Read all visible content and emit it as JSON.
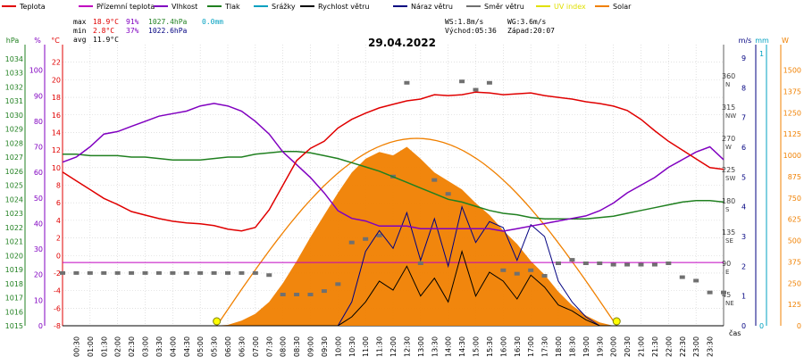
{
  "chart_data": {
    "type": "line",
    "title": "29.04.2022",
    "legend": [
      {
        "name": "Teplota",
        "color": "#e00000"
      },
      {
        "name": "Přízemní teplota",
        "color": "#c000c0"
      },
      {
        "name": "Vlhkost",
        "color": "#8000c0"
      },
      {
        "name": "Tlak",
        "color": "#208020"
      },
      {
        "name": "Srážky",
        "color": "#00a0c0"
      },
      {
        "name": "Rychlost větru",
        "color": "#000000"
      },
      {
        "name": "Náraz větru",
        "color": "#000080"
      },
      {
        "name": "Směr větru",
        "color": "#707070"
      },
      {
        "name": "UV index",
        "color": "#e0e000"
      },
      {
        "name": "Solar",
        "color": "#f08000"
      }
    ],
    "stats": {
      "max_label": "max",
      "max_temp": "18.9°C",
      "max_hum": "91%",
      "max_press": "1027.4hPa",
      "max_rain": "0.0mm",
      "min_label": "min",
      "min_temp": "2.8°C",
      "min_hum": "37%",
      "min_press": "1022.6hPa",
      "avg_label": "avg",
      "avg_temp": "11.9°C",
      "ws": "WS:1.8m/s",
      "wg": "WG:3.6m/s",
      "sunrise": "Východ:05:36",
      "sunset": "Západ:20:07"
    },
    "axes": {
      "hpa": {
        "unit": "hPa",
        "ticks": [
          1015,
          1016,
          1017,
          1018,
          1019,
          1020,
          1021,
          1022,
          1023,
          1024,
          1025,
          1026,
          1027,
          1028,
          1029,
          1030,
          1031,
          1032,
          1033,
          1034
        ]
      },
      "percent": {
        "unit": "%",
        "ticks": [
          0,
          10,
          20,
          30,
          40,
          50,
          60,
          70,
          80,
          90,
          100
        ]
      },
      "celsius": {
        "unit": "°C",
        "ticks": [
          -8,
          -6,
          -4,
          -2,
          0,
          2,
          4,
          6,
          8,
          10,
          12,
          14,
          16,
          18,
          20,
          22
        ]
      },
      "direction": {
        "ticks": [
          45,
          90,
          135,
          180,
          225,
          270,
          315,
          360
        ],
        "labels": [
          "NE",
          "E",
          "SE",
          "S",
          "SW",
          "W",
          "NW",
          "N"
        ]
      },
      "ms": {
        "unit": "m/s",
        "ticks": [
          0,
          1,
          2,
          3,
          4,
          5,
          6,
          7,
          8,
          9
        ]
      },
      "mm": {
        "unit": "mm",
        "ticks": [
          0,
          1
        ]
      },
      "w": {
        "unit": "W",
        "ticks": [
          0,
          125,
          250,
          375,
          500,
          625,
          750,
          875,
          1000,
          1125,
          1250,
          1375,
          1500
        ]
      },
      "x_label": "čas",
      "x_ticks": [
        "00:30",
        "01:00",
        "01:30",
        "02:00",
        "02:30",
        "03:00",
        "03:30",
        "04:00",
        "04:30",
        "05:00",
        "05:30",
        "06:00",
        "06:30",
        "07:00",
        "07:30",
        "08:00",
        "08:30",
        "09:00",
        "09:30",
        "10:00",
        "10:30",
        "11:00",
        "11:30",
        "12:00",
        "12:30",
        "13:00",
        "13:30",
        "14:00",
        "14:30",
        "15:00",
        "15:30",
        "16:00",
        "16:30",
        "17:00",
        "17:30",
        "18:00",
        "18:30",
        "19:00",
        "19:30",
        "20:00",
        "20:30",
        "21:00",
        "21:30",
        "22:00",
        "22:30",
        "23:00",
        "23:30"
      ]
    },
    "x_hours": [
      0,
      0.5,
      1,
      1.5,
      2,
      2.5,
      3,
      3.5,
      4,
      4.5,
      5,
      5.5,
      6,
      6.5,
      7,
      7.5,
      8,
      8.5,
      9,
      9.5,
      10,
      10.5,
      11,
      11.5,
      12,
      12.5,
      13,
      13.5,
      14,
      14.5,
      15,
      15.5,
      16,
      16.5,
      17,
      17.5,
      18,
      18.5,
      19,
      19.5,
      20,
      20.5,
      21,
      21.5,
      22,
      22.5,
      23,
      23.5,
      24
    ],
    "series": [
      {
        "name": "Teplota",
        "unit": "°C",
        "values": [
          9.5,
          8.5,
          7.5,
          6.5,
          5.8,
          5.0,
          4.6,
          4.2,
          3.9,
          3.7,
          3.6,
          3.4,
          3.0,
          2.8,
          3.2,
          5.2,
          8.0,
          10.8,
          12.2,
          13.0,
          14.5,
          15.5,
          16.2,
          16.8,
          17.2,
          17.6,
          17.8,
          18.3,
          18.2,
          18.3,
          18.6,
          18.5,
          18.3,
          18.4,
          18.5,
          18.2,
          18.0,
          17.8,
          17.5,
          17.3,
          17.0,
          16.5,
          15.5,
          14.2,
          13.0,
          12.0,
          11.0,
          10.0,
          9.8
        ]
      },
      {
        "name": "Vlhkost",
        "unit": "%",
        "values": [
          64,
          66,
          70,
          75,
          76,
          78,
          80,
          82,
          83,
          84,
          86,
          87,
          86,
          84,
          80,
          75,
          68,
          63,
          58,
          52,
          45,
          42,
          41,
          39,
          39,
          39,
          38,
          38,
          38,
          38,
          38,
          38,
          37,
          38,
          39,
          40,
          41,
          42,
          43,
          45,
          48,
          52,
          55,
          58,
          62,
          65,
          68,
          70,
          65
        ]
      },
      {
        "name": "Tlak",
        "unit": "hPa",
        "values": [
          1027.2,
          1027.2,
          1027.1,
          1027.1,
          1027.1,
          1027.0,
          1027.0,
          1026.9,
          1026.8,
          1026.8,
          1026.8,
          1026.9,
          1027.0,
          1027.0,
          1027.2,
          1027.3,
          1027.4,
          1027.4,
          1027.3,
          1027.1,
          1026.9,
          1026.6,
          1026.3,
          1026.0,
          1025.6,
          1025.2,
          1024.8,
          1024.4,
          1024.0,
          1023.8,
          1023.5,
          1023.2,
          1023.0,
          1022.9,
          1022.7,
          1022.6,
          1022.6,
          1022.6,
          1022.6,
          1022.7,
          1022.8,
          1023.0,
          1023.2,
          1023.4,
          1023.6,
          1023.8,
          1023.9,
          1023.9,
          1023.8
        ]
      },
      {
        "name": "Přízemní teplota",
        "unit": "°C",
        "values": [
          -0.8,
          -0.8,
          -0.8,
          -0.8,
          -0.8,
          -0.8,
          -0.8,
          -0.8,
          -0.8,
          -0.8,
          -0.8,
          -0.8,
          -0.8,
          -0.8,
          -0.8,
          -0.8,
          -0.8,
          -0.8,
          -0.8,
          -0.8,
          -0.8,
          -0.8,
          -0.8,
          -0.8,
          -0.8,
          -0.8,
          -0.8,
          -0.8,
          -0.8,
          -0.8,
          -0.8,
          -0.8,
          -0.8,
          -0.8,
          -0.8,
          -0.8,
          -0.8,
          -0.8,
          -0.8,
          -0.8,
          -0.8,
          -0.8,
          -0.8,
          -0.8,
          -0.8,
          -0.8,
          -0.8,
          -0.8,
          -0.8
        ]
      },
      {
        "name": "Solar",
        "unit": "W",
        "values": [
          0,
          0,
          0,
          0,
          0,
          0,
          0,
          0,
          0,
          0,
          0,
          0,
          5,
          30,
          70,
          140,
          250,
          380,
          520,
          650,
          780,
          900,
          980,
          1020,
          1000,
          1050,
          980,
          900,
          850,
          800,
          720,
          650,
          560,
          480,
          380,
          300,
          200,
          120,
          60,
          20,
          0,
          0,
          0,
          0,
          0,
          0,
          0,
          0,
          0
        ]
      },
      {
        "name": "Rychlost větru",
        "unit": "m/s",
        "values": [
          0,
          0,
          0,
          0,
          0,
          0,
          0,
          0,
          0,
          0,
          0,
          0,
          0,
          0,
          0,
          0,
          0,
          0,
          0,
          0,
          0,
          0.3,
          0.8,
          1.5,
          1.2,
          2.0,
          1.0,
          1.6,
          0.8,
          2.5,
          1.0,
          1.8,
          1.5,
          0.9,
          1.7,
          1.3,
          0.7,
          0.5,
          0.2,
          0,
          0,
          0,
          0,
          0,
          0,
          0,
          0,
          0,
          0
        ]
      },
      {
        "name": "Náraz větru",
        "unit": "m/s",
        "values": [
          0,
          0,
          0,
          0,
          0,
          0,
          0,
          0,
          0,
          0,
          0,
          0,
          0,
          0,
          0,
          0,
          0,
          0,
          0,
          0,
          0,
          0.8,
          2.5,
          3.2,
          2.6,
          3.8,
          2.2,
          3.6,
          2.0,
          4.0,
          2.8,
          3.5,
          3.3,
          2.2,
          3.4,
          3.0,
          1.5,
          0.8,
          0.3,
          0,
          0,
          0,
          0,
          0,
          0,
          0,
          0,
          0,
          0
        ]
      },
      {
        "name": "Směr větru",
        "unit": "°",
        "values": [
          76,
          76,
          76,
          76,
          76,
          76,
          76,
          76,
          76,
          76,
          76,
          76,
          76,
          76,
          76,
          73,
          45,
          45,
          45,
          50,
          60,
          120,
          125,
          130,
          215,
          350,
          90,
          210,
          190,
          352,
          340,
          350,
          80,
          75,
          80,
          72,
          90,
          95,
          90,
          90,
          88,
          88,
          88,
          88,
          90,
          70,
          65,
          48,
          48
        ]
      }
    ],
    "sun_markers": [
      "05:36",
      "20:07"
    ]
  }
}
